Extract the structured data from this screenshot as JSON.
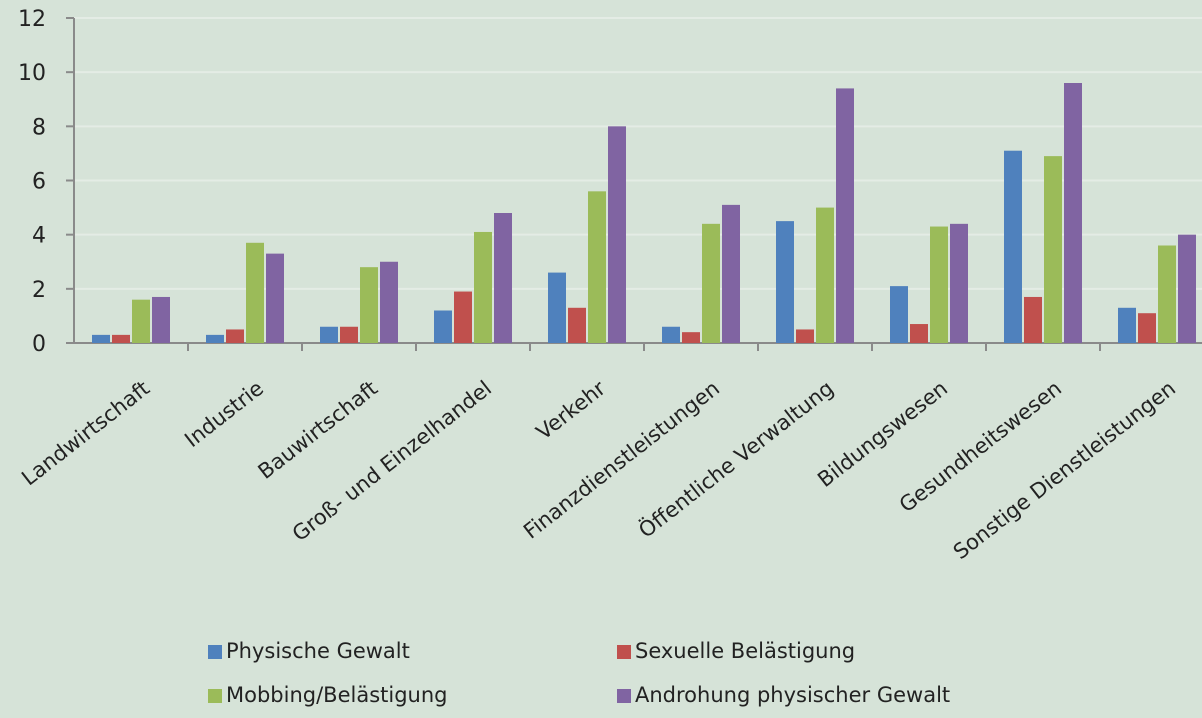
{
  "chart_data": {
    "type": "bar",
    "categories": [
      "Landwirtschaft",
      "Industrie",
      "Bauwirtschaft",
      "Groß- und Einzelhandel",
      "Verkehr",
      "Finanzdienstleistungen",
      "Öffentliche Verwaltung",
      "Bildungswesen",
      "Gesundheitswesen",
      "Sonstige Dienstleistungen"
    ],
    "series": [
      {
        "name": "Physische Gewalt",
        "color": "#4f81bd",
        "values": [
          0.3,
          0.3,
          0.6,
          1.2,
          2.6,
          0.6,
          4.5,
          2.1,
          7.1,
          1.3
        ]
      },
      {
        "name": "Sexuelle Belästigung",
        "color": "#c0504d",
        "values": [
          0.3,
          0.5,
          0.6,
          1.9,
          1.3,
          0.4,
          0.5,
          0.7,
          1.7,
          1.1
        ]
      },
      {
        "name": "Mobbing/Belästigung",
        "color": "#9bbb59",
        "values": [
          1.6,
          3.7,
          2.8,
          4.1,
          5.6,
          4.4,
          5.0,
          4.3,
          6.9,
          3.6
        ]
      },
      {
        "name": "Androhung physischer Gewalt",
        "color": "#8064a2",
        "values": [
          1.7,
          3.3,
          3.0,
          4.8,
          8.0,
          5.1,
          9.4,
          4.4,
          9.6,
          4.0
        ]
      }
    ],
    "yticks": [
      0,
      2,
      4,
      6,
      8,
      10,
      12
    ],
    "ylim": [
      0,
      12
    ],
    "grid": true,
    "legend_position": "bottom",
    "title": "",
    "xlabel": "",
    "ylabel": ""
  },
  "colors": {
    "background": "#d6e3d8",
    "gridline": "#e4ece5",
    "axis": "#8a8a8a"
  }
}
